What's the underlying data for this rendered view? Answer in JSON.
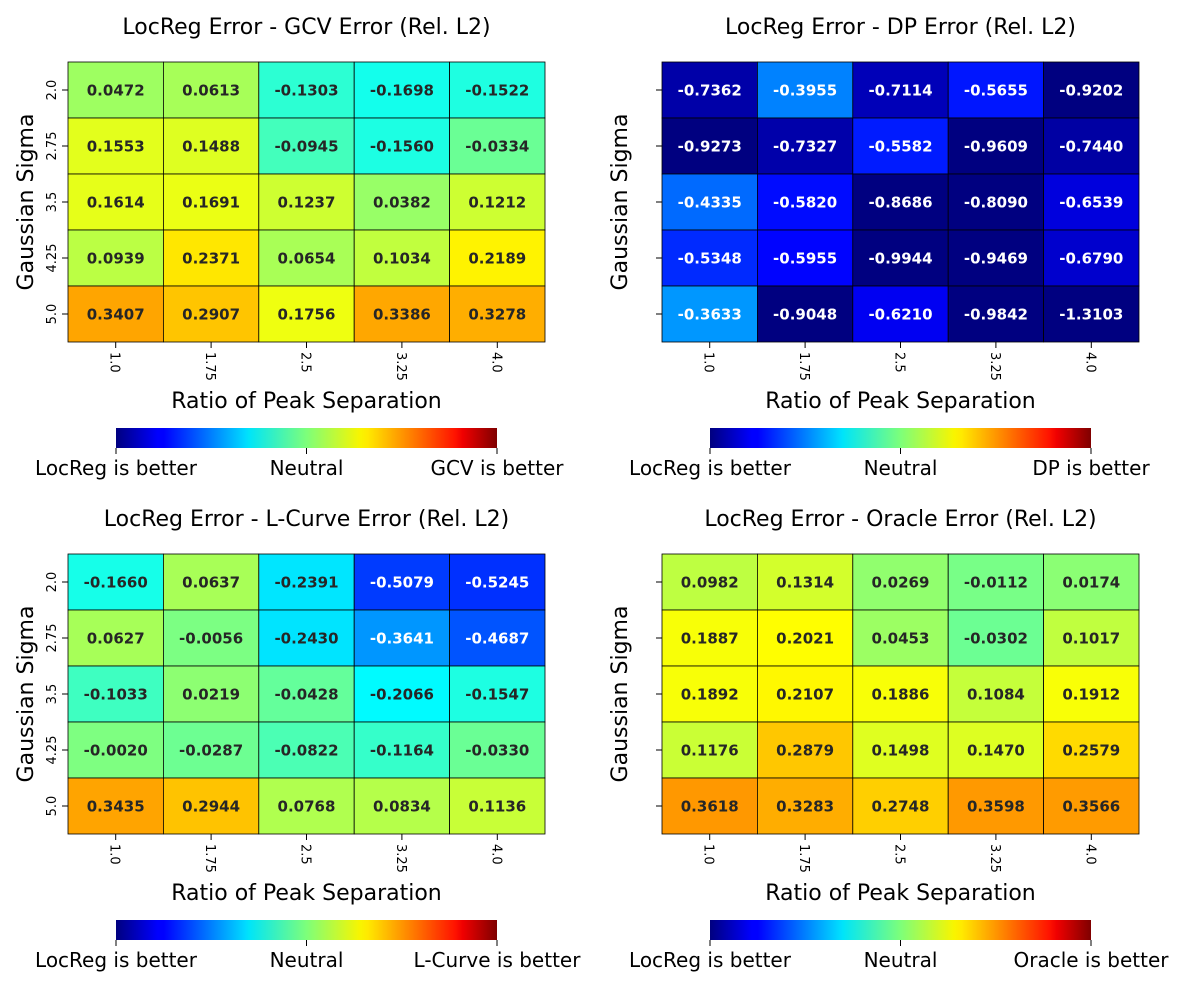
{
  "chart_data": [
    {
      "type": "heatmap",
      "title": "LocReg Error - GCV Error (Rel. L2)",
      "xlabel": "Ratio of Peak Separation",
      "ylabel": "Gaussian Sigma",
      "x_categories": [
        "1.0",
        "1.75",
        "2.5",
        "3.25",
        "4.0"
      ],
      "y_categories": [
        "2.0",
        "2.75",
        "3.5",
        "4.25",
        "5.0"
      ],
      "values": [
        [
          "0.0472",
          "0.0613",
          "-0.1303",
          "-0.1698",
          "-0.1522"
        ],
        [
          "0.1553",
          "0.1488",
          "-0.0945",
          "-0.1560",
          "-0.0334"
        ],
        [
          "0.1614",
          "0.1691",
          "0.1237",
          "0.0382",
          "0.1212"
        ],
        [
          "0.0939",
          "0.2371",
          "0.0654",
          "0.1034",
          "0.2189"
        ],
        [
          "0.3407",
          "0.2907",
          "0.1756",
          "0.3386",
          "0.3278"
        ]
      ],
      "colorbar": {
        "colormap": "jet",
        "labels": [
          "LocReg is better",
          "Neutral",
          "GCV is better"
        ]
      }
    },
    {
      "type": "heatmap",
      "title": "LocReg Error - DP Error (Rel. L2)",
      "xlabel": "Ratio of Peak Separation",
      "ylabel": "Gaussian Sigma",
      "x_categories": [
        "1.0",
        "1.75",
        "2.5",
        "3.25",
        "4.0"
      ],
      "y_categories": [
        "",
        "",
        "",
        "",
        ""
      ],
      "values": [
        [
          "-0.7362",
          "-0.3955",
          "-0.7114",
          "-0.5655",
          "-0.9202"
        ],
        [
          "-0.9273",
          "-0.7327",
          "-0.5582",
          "-0.9609",
          "-0.7440"
        ],
        [
          "-0.4335",
          "-0.5820",
          "-0.8686",
          "-0.8090",
          "-0.6539"
        ],
        [
          "-0.5348",
          "-0.5955",
          "-0.9944",
          "-0.9469",
          "-0.6790"
        ],
        [
          "-0.3633",
          "-0.9048",
          "-0.6210",
          "-0.9842",
          "-1.3103"
        ]
      ],
      "colorbar": {
        "colormap": "jet",
        "labels": [
          "LocReg is better",
          "Neutral",
          "DP is better"
        ]
      }
    },
    {
      "type": "heatmap",
      "title": "LocReg Error - L-Curve Error (Rel. L2)",
      "xlabel": "Ratio of Peak Separation",
      "ylabel": "Gaussian Sigma",
      "x_categories": [
        "1.0",
        "1.75",
        "2.5",
        "3.25",
        "4.0"
      ],
      "y_categories": [
        "2.0",
        "2.75",
        "3.5",
        "4.25",
        "5.0"
      ],
      "values": [
        [
          "-0.1660",
          "0.0637",
          "-0.2391",
          "-0.5079",
          "-0.5245"
        ],
        [
          "0.0627",
          "-0.0056",
          "-0.2430",
          "-0.3641",
          "-0.4687"
        ],
        [
          "-0.1033",
          "0.0219",
          "-0.0428",
          "-0.2066",
          "-0.1547"
        ],
        [
          "-0.0020",
          "-0.0287",
          "-0.0822",
          "-0.1164",
          "-0.0330"
        ],
        [
          "0.3435",
          "0.2944",
          "0.0768",
          "0.0834",
          "0.1136"
        ]
      ],
      "colorbar": {
        "colormap": "jet",
        "labels": [
          "LocReg is better",
          "Neutral",
          "L-Curve is better"
        ]
      }
    },
    {
      "type": "heatmap",
      "title": "LocReg Error - Oracle Error (Rel. L2)",
      "xlabel": "Ratio of Peak Separation",
      "ylabel": "Gaussian Sigma",
      "x_categories": [
        "1.0",
        "1.75",
        "2.5",
        "3.25",
        "4.0"
      ],
      "y_categories": [
        "",
        "",
        "",
        "",
        ""
      ],
      "values": [
        [
          "0.0982",
          "0.1314",
          "0.0269",
          "-0.0112",
          "0.0174"
        ],
        [
          "0.1887",
          "0.2021",
          "0.0453",
          "-0.0302",
          "0.1017"
        ],
        [
          "0.1892",
          "0.2107",
          "0.1886",
          "0.1084",
          "0.1912"
        ],
        [
          "0.1176",
          "0.2879",
          "0.1498",
          "0.1470",
          "0.2579"
        ],
        [
          "0.3618",
          "0.3283",
          "0.2748",
          "0.3598",
          "0.3566"
        ]
      ],
      "colorbar": {
        "colormap": "jet",
        "labels": [
          "LocReg is better",
          "Neutral",
          "Oracle is better"
        ]
      }
    }
  ]
}
